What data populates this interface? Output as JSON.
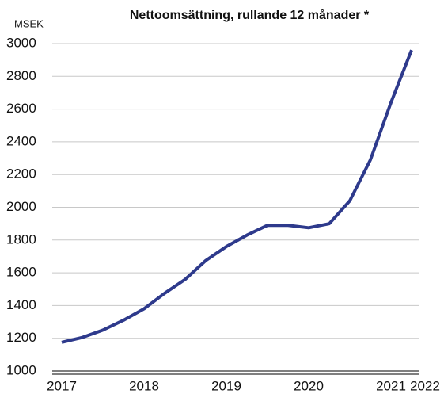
{
  "chart_data": {
    "type": "line",
    "title": "Nettoomsättning, rullande 12 månader *",
    "y_label": "MSEK",
    "categories": [
      "2017",
      null,
      null,
      null,
      "2018",
      null,
      null,
      null,
      "2019",
      null,
      null,
      null,
      "2020",
      null,
      null,
      null,
      "2021",
      null,
      "2022"
    ],
    "series": [
      {
        "name": "Nettoomsättning",
        "color": "#2e3a8c",
        "values": [
          1175,
          1205,
          1250,
          1310,
          1380,
          1475,
          1560,
          1675,
          1760,
          1830,
          1890,
          1890,
          1875,
          1900,
          2040,
          2290,
          2640,
          2960,
          null
        ]
      }
    ],
    "ylim": [
      1000,
      3000
    ],
    "yticks": [
      1000,
      1200,
      1400,
      1600,
      1800,
      2000,
      2200,
      2400,
      2600,
      2800,
      3000
    ],
    "grid": true
  }
}
